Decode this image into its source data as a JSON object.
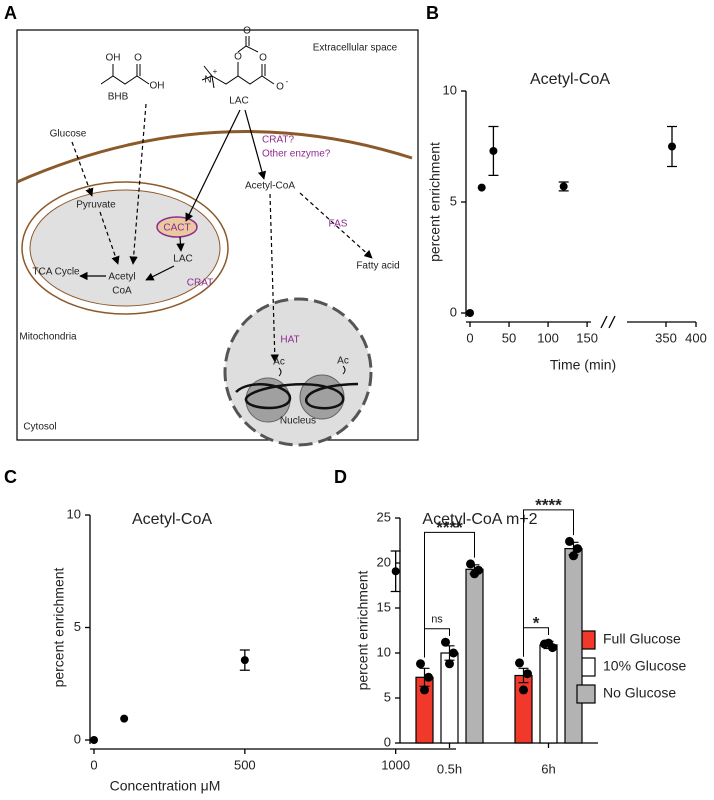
{
  "panel_labels": [
    "A",
    "B",
    "C",
    "D"
  ],
  "diagram": {
    "extracellular": "Extracellular space",
    "glucose": "Glucose",
    "bhb": "BHB",
    "bhb_atoms": [
      "OH",
      "O",
      "OH"
    ],
    "lac": "LAC",
    "lac_atoms": [
      "O",
      "O",
      "N",
      "+",
      "O",
      "O",
      "-"
    ],
    "crat_q": "CRAT?",
    "other_enzyme": "Other enzyme?",
    "pyruvate": "Pyruvate",
    "cact": "CACT",
    "acetyl_coa": "Acetyl-CoA",
    "fas": "FAS",
    "fatty_acid": "Fatty acid",
    "lac_mito": "LAC",
    "crat": "CRAT",
    "tca": "TCA Cycle",
    "acetyl": "Acetyl",
    "coa": "CoA",
    "mitochondria": "Mitochondria",
    "hat": "HAT",
    "ac": [
      "Ac",
      "Ac"
    ],
    "nucleus": "Nucleus",
    "cytosol": "Cytosol"
  },
  "chart_data": [
    {
      "type": "scatter",
      "title": "Acetyl-CoA",
      "x": [
        0,
        15,
        30,
        120,
        360
      ],
      "values": [
        0,
        5.65,
        7.3,
        5.7,
        7.5
      ],
      "errors": [
        null,
        null,
        1.1,
        0.2,
        0.9
      ],
      "color": "#000000",
      "xlim": [
        0,
        400
      ],
      "x_break": [
        155,
        285
      ],
      "xticks": [
        0,
        50,
        100,
        150,
        350,
        400
      ],
      "ylim": [
        0,
        10
      ],
      "yticks": [
        0,
        5,
        10
      ],
      "xlabel": "Time (min)",
      "ylabel": "percent enrichment"
    },
    {
      "type": "scatter",
      "title": "Acetyl-CoA",
      "x": [
        0,
        100,
        500,
        1000
      ],
      "values": [
        0,
        0.95,
        3.55,
        7.5
      ],
      "errors": [
        null,
        null,
        0.45,
        0.9
      ],
      "color": "#000000",
      "xlim": [
        0,
        1200
      ],
      "xticks": [
        0,
        500,
        1000
      ],
      "ylim": [
        0,
        10
      ],
      "yticks": [
        0,
        5,
        10
      ],
      "xlabel": "Concentration μM",
      "ylabel": "percent enrichment"
    },
    {
      "type": "bar",
      "title": "Acetyl-CoA m+2",
      "categories": [
        "0.5h",
        "6h"
      ],
      "series": [
        {
          "name": "Full Glucose",
          "color": "#f0392b",
          "values": [
            7.3,
            7.5
          ],
          "errors": [
            1.0,
            0.8
          ],
          "points": [
            [
              8.8,
              7.3,
              5.9
            ],
            [
              8.9,
              7.7,
              5.9
            ]
          ]
        },
        {
          "name": "10% Glucose",
          "color": "#ffffff",
          "values": [
            10.0,
            10.9
          ],
          "errors": [
            0.8,
            0.4
          ],
          "points": [
            [
              11.2,
              10.0,
              8.8
            ],
            [
              11.0,
              10.6,
              11.1
            ]
          ]
        },
        {
          "name": "No Glucose",
          "color": "#b3b3b3",
          "values": [
            19.3,
            21.6
          ],
          "errors": [
            0.5,
            0.7
          ],
          "points": [
            [
              19.9,
              19.2,
              18.8
            ],
            [
              22.4,
              21.6,
              20.8
            ]
          ]
        }
      ],
      "ylim": [
        0,
        25
      ],
      "yticks": [
        0,
        5,
        10,
        15,
        20,
        25
      ],
      "ylabel": "percent enrichment",
      "legend": "right",
      "significance": [
        {
          "category": 0,
          "pair": [
            0,
            1
          ],
          "label": "ns"
        },
        {
          "category": 0,
          "pair": [
            0,
            2
          ],
          "label": "****"
        },
        {
          "category": 1,
          "pair": [
            0,
            1
          ],
          "label": "*"
        },
        {
          "category": 1,
          "pair": [
            0,
            2
          ],
          "label": "****"
        }
      ]
    }
  ]
}
